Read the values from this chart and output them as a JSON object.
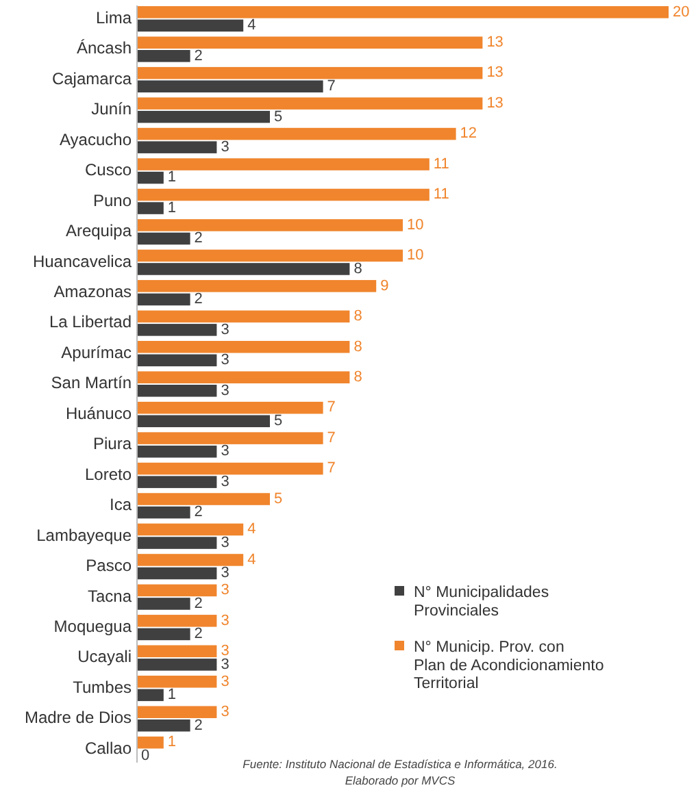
{
  "chart_data": {
    "type": "bar",
    "orientation": "horizontal",
    "data_labels": true,
    "legend": "bottom right",
    "categories": [
      "Lima",
      "Áncash",
      "Cajamarca",
      "Junín",
      "Ayacucho",
      "Cusco",
      "Puno",
      "Arequipa",
      "Huancavelica",
      "Amazonas",
      "La Libertad",
      "Apurímac",
      "San Martín",
      "Huánuco",
      "Piura",
      "Loreto",
      "Ica",
      "Lambayeque",
      "Pasco",
      "Tacna",
      "Moquegua",
      "Ucayali",
      "Tumbes",
      "Madre de Dios",
      "Callao"
    ],
    "series": [
      {
        "name": "N° Municipalidades Provinciales",
        "color": "#404040",
        "values": [
          4,
          2,
          7,
          5,
          3,
          1,
          1,
          2,
          8,
          2,
          3,
          3,
          3,
          5,
          3,
          3,
          2,
          3,
          3,
          2,
          2,
          3,
          1,
          2,
          0
        ]
      },
      {
        "name": "N° Municip. Prov. con Plan de Acondicionamiento Territorial",
        "color": "#f0852d",
        "values": [
          20,
          13,
          13,
          13,
          12,
          11,
          11,
          10,
          10,
          9,
          8,
          8,
          8,
          7,
          7,
          7,
          5,
          4,
          4,
          3,
          3,
          3,
          3,
          3,
          1
        ]
      }
    ],
    "annotations": [
      "Fuente: Instituto Nacional de Estadística e Informática, 2016.",
      "Elaborado por MVCS"
    ]
  }
}
